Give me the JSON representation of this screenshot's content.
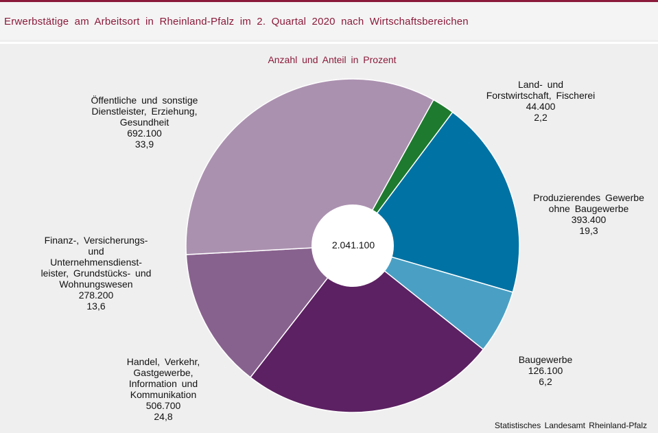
{
  "title": "Erwerbstätige  am  Arbeitsort  in  Rheinland-Pfalz  im  2.  Quartal  2020  nach  Wirtschaftsbereichen",
  "source": "Statistisches Landesamt Rheinland-Pfalz",
  "chart_data": {
    "type": "pie",
    "subtitle": "Anzahl und Anteil in Prozent",
    "total_label": "2.041.100",
    "legend": "none",
    "slices": [
      {
        "lines": [
          "Land- und",
          "Forstwirtschaft, Fischerei"
        ],
        "value_label": "44.400",
        "pct_label": "2,2",
        "value": 44400,
        "color": "#1e7a2e"
      },
      {
        "lines": [
          "Produzierendes Gewerbe",
          "ohne Baugewerbe"
        ],
        "value_label": "393.400",
        "pct_label": "19,3",
        "value": 393400,
        "color": "#0072a3"
      },
      {
        "lines": [
          "Baugewerbe"
        ],
        "value_label": "126.100",
        "pct_label": "6,2",
        "value": 126100,
        "color": "#4aa0c4"
      },
      {
        "lines": [
          "Handel, Verkehr,",
          "Gastgewerbe,",
          "Information und",
          "Kommunikation"
        ],
        "value_label": "506.700",
        "pct_label": "24,8",
        "value": 506700,
        "color": "#5c2162"
      },
      {
        "lines": [
          "Finanz-, Versicherungs-",
          "und",
          "Unternehmensdienst-",
          "leister, Grundstücks- und",
          "Wohnungswesen"
        ],
        "value_label": "278.200",
        "pct_label": "13,6",
        "value": 278200,
        "color": "#88628e"
      },
      {
        "lines": [
          "Öffentliche und sonstige",
          "Dienstleister, Erziehung,",
          "Gesundheit"
        ],
        "value_label": "692.100",
        "pct_label": "33,9",
        "value": 692100,
        "color": "#ab91b0"
      }
    ]
  }
}
